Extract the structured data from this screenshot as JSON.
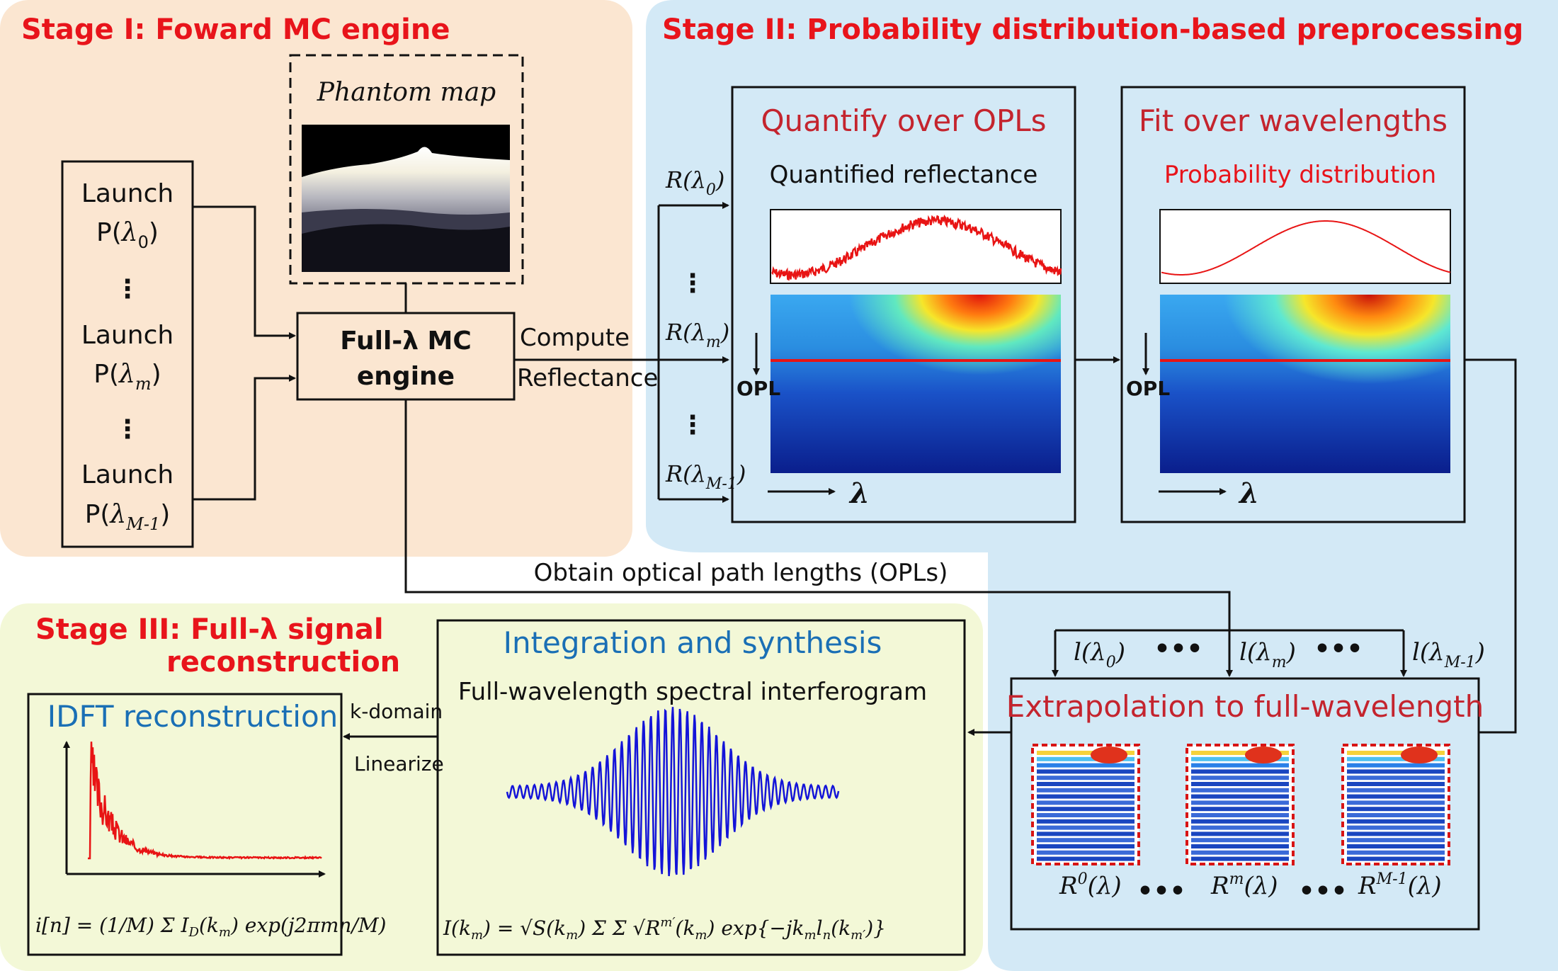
{
  "stage1": {
    "title": "Stage I: Foward MC engine",
    "phantom_label": "Phantom map",
    "launch_label": "Launch",
    "launch_items": [
      "P(λ0)",
      "P(λm)",
      "P(λM-1)"
    ],
    "engine_line1": "Full-λ MC",
    "engine_line2": "engine",
    "compute_label": "Compute",
    "reflectance_label": "Reflectance"
  },
  "stage2": {
    "title": "Stage II: Probability distribution-based preprocessing",
    "quantify_title": "Quantify over OPLs",
    "quantify_sub": "Quantified reflectance",
    "fit_title": "Fit over wavelengths",
    "fit_sub": "Probability distribution",
    "opl_label": "OPL",
    "lambda_label": "λ",
    "r_labels": [
      "R(λ0)",
      "R(λm)",
      "R(λM-1)"
    ]
  },
  "middle": {
    "opl_caption": "Obtain optical path lengths (OPLs)",
    "l_labels": [
      "l(λ0)",
      "l(λm)",
      "l(λM-1)"
    ],
    "extrapolation_title": "Extrapolation to full-wavelength",
    "rm_labels": [
      "R0(λ)",
      "Rm(λ)",
      "RM-1(λ)"
    ],
    "ellipsis": "•••"
  },
  "stage3": {
    "title_line1": "Stage III: Full-λ signal",
    "title_line2": "reconstruction",
    "integration_title": "Integration and synthesis",
    "integration_sub": "Full-wavelength spectral interferogram",
    "idft_title": "IDFT reconstruction",
    "kdomain_label": "k-domain",
    "linearize_label": "Linearize",
    "formula_idft": "i[n] = (1/M) Σ_{m=0}^{M-1} I_D(k_m) exp(j2πmn/M)",
    "formula_interf": "I(k_m) = √S(k_m) Σ_{m'=0}^{M-1} Σ_{n=0}^{N(k_m')-1} √R_n^{m'}(k_m) exp{−jk_m l_n(k_m')}"
  },
  "colors": {
    "stage1_bg": "#fbe6d1",
    "stage2_bg": "#d3e9f6",
    "stage3_bg": "#f3f8d7",
    "title_red": "#e8141b",
    "accent_blue": "#1a6fb5"
  }
}
